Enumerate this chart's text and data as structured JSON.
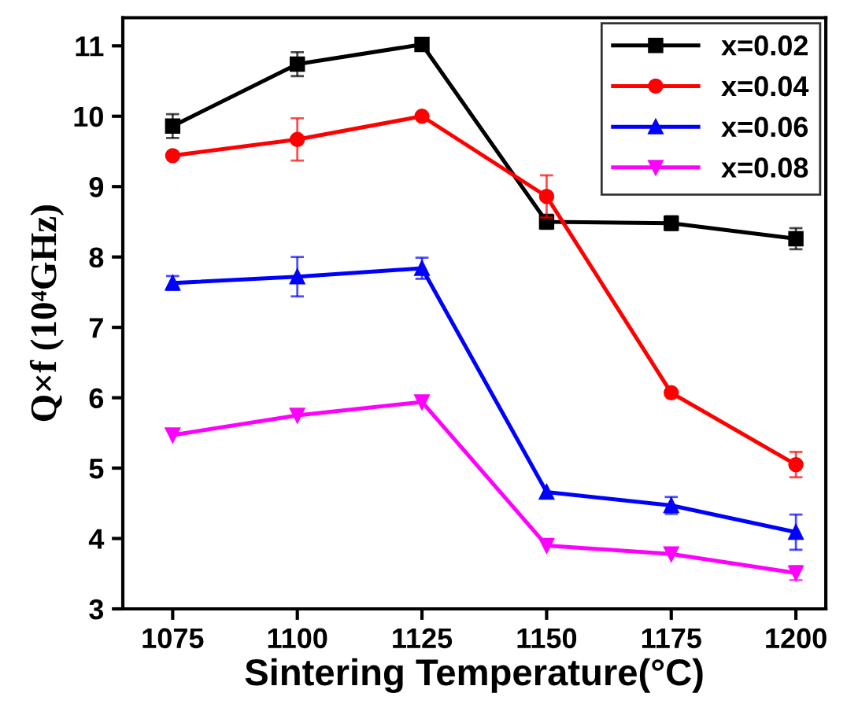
{
  "chart_data": {
    "type": "line",
    "xlabel": "Sintering Temperature(°C)",
    "ylabel": "Q×f (10⁴GHz)",
    "x": [
      1075,
      1100,
      1125,
      1150,
      1175,
      1200
    ],
    "xlim": [
      1065,
      1206
    ],
    "xticks": [
      1075,
      1100,
      1125,
      1150,
      1175,
      1200
    ],
    "ylim": [
      3,
      11.4
    ],
    "yticks": [
      3,
      4,
      5,
      6,
      7,
      8,
      9,
      10,
      11
    ],
    "grid": false,
    "legend": "top right",
    "line_style": "solid",
    "series": [
      {
        "name": "x=0.02",
        "color": "#000000",
        "marker": "square",
        "values": [
          9.86,
          10.74,
          11.02,
          8.5,
          8.48,
          8.26
        ],
        "errors": [
          0.17,
          0.17,
          null,
          0.1,
          0.1,
          0.15
        ]
      },
      {
        "name": "x=0.04",
        "color": "#ff0000",
        "marker": "circle",
        "values": [
          9.44,
          9.67,
          10.0,
          8.86,
          6.07,
          5.05
        ],
        "errors": [
          null,
          0.3,
          null,
          0.3,
          null,
          0.18
        ]
      },
      {
        "name": "x=0.06",
        "color": "#0000ff",
        "marker": "triangle",
        "values": [
          7.63,
          7.72,
          7.84,
          4.66,
          4.47,
          4.09
        ],
        "errors": [
          0.1,
          0.28,
          0.15,
          null,
          0.12,
          0.25
        ]
      },
      {
        "name": "x=0.08",
        "color": "#ff00ff",
        "marker": "triangle_down",
        "values": [
          5.47,
          5.75,
          5.94,
          3.9,
          3.78,
          3.51
        ],
        "errors": [
          null,
          null,
          null,
          null,
          null,
          0.1
        ]
      }
    ]
  }
}
